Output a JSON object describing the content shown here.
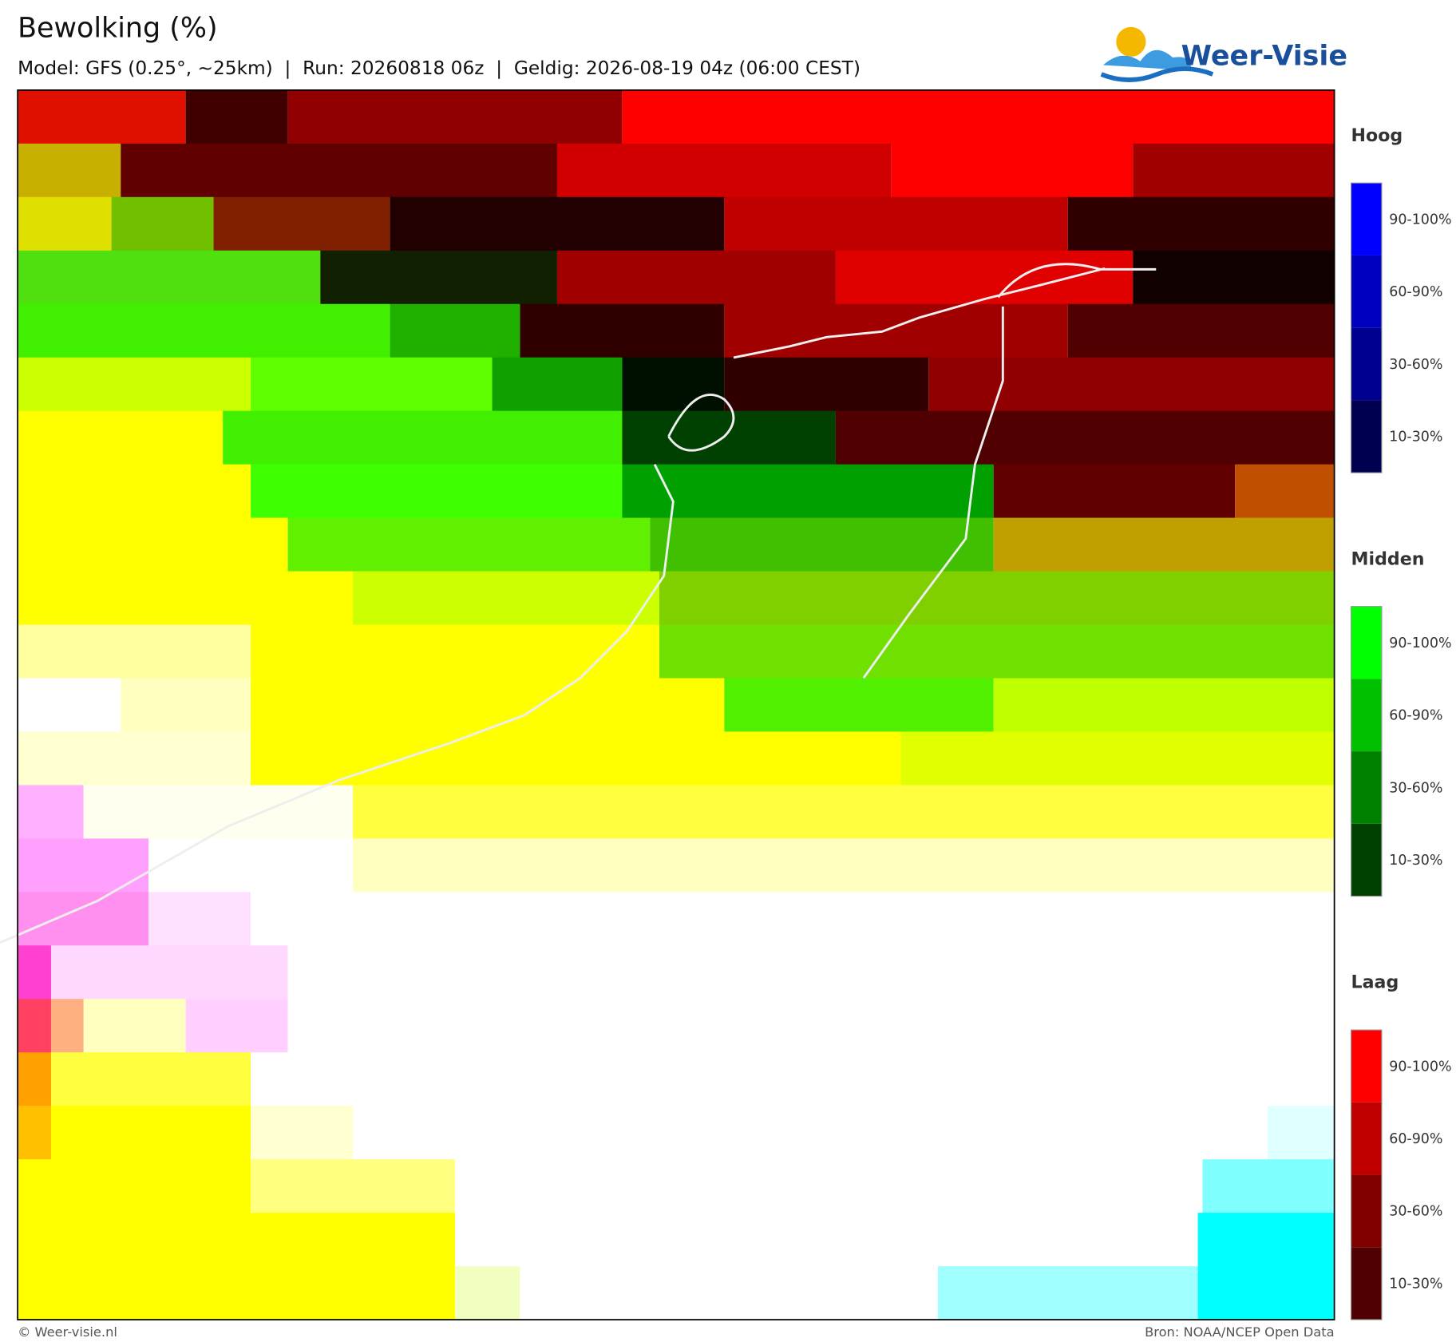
{
  "header": {
    "title": "Bewolking (%)",
    "subtitle": "Model: GFS (0.25°, ~25km)  |  Run: 20260818 06z  |  Geldig: 2026-08-19 04z (06:00 CEST)"
  },
  "logo": {
    "text": "Weer-Visie"
  },
  "legend": [
    {
      "title": "Hoog",
      "labels": [
        "90-100%",
        "60-90%",
        "30-60%",
        "10-30%"
      ]
    },
    {
      "title": "Midden",
      "labels": [
        "90-100%",
        "60-90%",
        "30-60%",
        "10-30%"
      ]
    },
    {
      "title": "Laag",
      "labels": [
        "90-100%",
        "60-90%",
        "30-60%",
        "10-30%"
      ]
    }
  ],
  "footer": {
    "left": "© Weer-visie.nl",
    "right": "Bron: NOAA/NCEP Open Data"
  }
}
